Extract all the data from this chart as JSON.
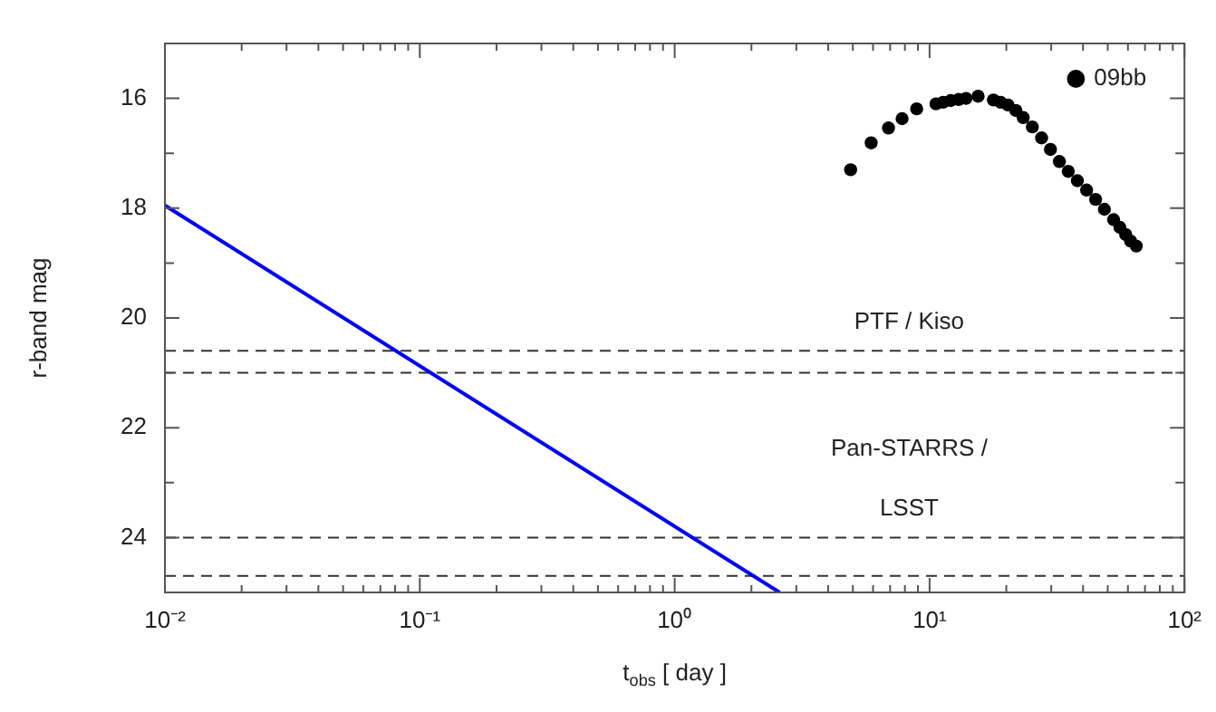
{
  "chart_data": {
    "type": "scatter",
    "xlabel": "t$_{obs}$ [ day ]",
    "ylabel": "r-band mag",
    "log": "x",
    "xlim": [
      0.01,
      100
    ],
    "ylim": [
      25,
      15
    ],
    "xticks": [
      {
        "value": 0.01,
        "label": "10⁻²"
      },
      {
        "value": 0.02,
        "label": null
      },
      {
        "value": 0.03,
        "label": null
      },
      {
        "value": 0.04,
        "label": null
      },
      {
        "value": 0.05,
        "label": null
      },
      {
        "value": 0.06,
        "label": null
      },
      {
        "value": 0.07,
        "label": null
      },
      {
        "value": 0.08,
        "label": null
      },
      {
        "value": 0.09,
        "label": null
      },
      {
        "value": 0.1,
        "label": "10⁻¹"
      },
      {
        "value": 0.2,
        "label": null
      },
      {
        "value": 0.3,
        "label": null
      },
      {
        "value": 0.4,
        "label": null
      },
      {
        "value": 0.5,
        "label": null
      },
      {
        "value": 0.6,
        "label": null
      },
      {
        "value": 0.7,
        "label": null
      },
      {
        "value": 0.8,
        "label": null
      },
      {
        "value": 0.9,
        "label": null
      },
      {
        "value": 1,
        "label": "10⁰"
      },
      {
        "value": 2,
        "label": null
      },
      {
        "value": 3,
        "label": null
      },
      {
        "value": 4,
        "label": null
      },
      {
        "value": 5,
        "label": null
      },
      {
        "value": 6,
        "label": null
      },
      {
        "value": 7,
        "label": null
      },
      {
        "value": 8,
        "label": null
      },
      {
        "value": 9,
        "label": null
      },
      {
        "value": 10,
        "label": "10¹"
      },
      {
        "value": 20,
        "label": null
      },
      {
        "value": 30,
        "label": null
      },
      {
        "value": 40,
        "label": null
      },
      {
        "value": 50,
        "label": null
      },
      {
        "value": 60,
        "label": null
      },
      {
        "value": 70,
        "label": null
      },
      {
        "value": 80,
        "label": null
      },
      {
        "value": 90,
        "label": null
      },
      {
        "value": 100,
        "label": "10²"
      }
    ],
    "yticks": [
      16,
      {
        "value": 17,
        "label": null
      },
      18,
      {
        "value": 19,
        "label": null
      },
      20,
      {
        "value": 21,
        "label": null
      },
      22,
      {
        "value": 23,
        "label": null
      },
      24
    ],
    "grid": false,
    "legend": "top right",
    "marker": "circle",
    "series": [
      {
        "type": "line",
        "color": "#0000ff",
        "line_style": "solid",
        "marker": "none",
        "x": [
          0.01,
          2.58
        ],
        "values": [
          17.95,
          25.0
        ]
      },
      {
        "type": "scatter",
        "name": "09bb",
        "color": "#000000",
        "x": [
          4.9,
          5.9,
          6.9,
          7.8,
          8.9,
          10.6,
          11.3,
          12.1,
          13.0,
          13.9,
          15.5,
          17.8,
          19.0,
          20.3,
          21.8,
          23.3,
          25.3,
          27.5,
          29.8,
          32.3,
          35.0,
          38.0,
          41.3,
          44.8,
          48.5,
          52.7,
          55.8,
          58.8,
          61.5,
          64.7
        ],
        "values": [
          17.3,
          16.81,
          16.54,
          16.37,
          16.19,
          16.1,
          16.07,
          16.04,
          16.02,
          16.0,
          15.96,
          16.03,
          16.07,
          16.12,
          16.22,
          16.35,
          16.52,
          16.72,
          16.93,
          17.15,
          17.33,
          17.5,
          17.67,
          17.84,
          18.02,
          18.21,
          18.35,
          18.48,
          18.6,
          18.69
        ]
      }
    ],
    "ref_lines": [
      {
        "axis": "y",
        "value": 20.6,
        "color": "#333333",
        "line_style": "dashed",
        "label": "PTF / Kiso"
      },
      {
        "axis": "y",
        "value": 21.0,
        "color": "#333333",
        "line_style": "dashed"
      },
      {
        "axis": "y",
        "value": 24.0,
        "color": "#333333",
        "line_style": "dashed",
        "label": "Pan-STARRS / LSST"
      },
      {
        "axis": "y",
        "value": 24.7,
        "color": "#333333",
        "line_style": "dashed"
      }
    ]
  }
}
